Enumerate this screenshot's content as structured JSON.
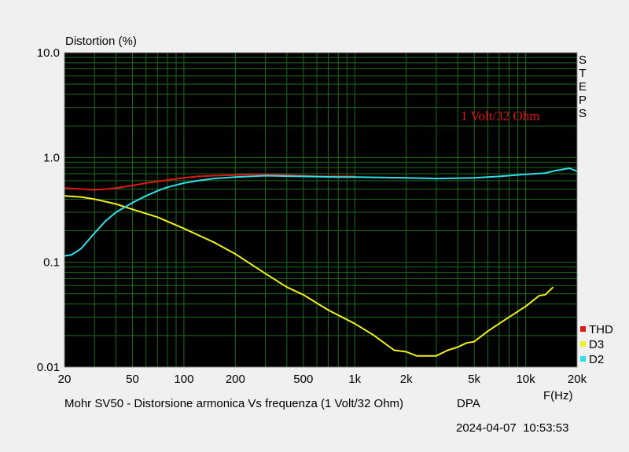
{
  "chart_data": {
    "type": "line",
    "title": "Distortion (%)",
    "xlabel": "F(Hz)",
    "x_scale": "log",
    "y_scale": "log",
    "xlim": [
      20,
      20000
    ],
    "ylim": [
      0.01,
      10
    ],
    "grid": true,
    "x_ticks": [
      {
        "v": 20,
        "label": "20"
      },
      {
        "v": 50,
        "label": "50"
      },
      {
        "v": 100,
        "label": "100"
      },
      {
        "v": 200,
        "label": "200"
      },
      {
        "v": 500,
        "label": "500"
      },
      {
        "v": 1000,
        "label": "1k"
      },
      {
        "v": 2000,
        "label": "2k"
      },
      {
        "v": 5000,
        "label": "5k"
      },
      {
        "v": 10000,
        "label": "10k"
      },
      {
        "v": 20000,
        "label": "20k"
      }
    ],
    "y_ticks": [
      {
        "v": 10,
        "label": "10.0"
      },
      {
        "v": 1,
        "label": "1.0"
      },
      {
        "v": 0.1,
        "label": "0.1"
      },
      {
        "v": 0.01,
        "label": "0.01"
      }
    ],
    "annotation": "1 Volt/32 Ohm",
    "side_label": [
      "S",
      "T",
      "E",
      "P",
      "S"
    ],
    "caption": "Mohr SV50 - Distorsione armonica Vs frequenza (1 Volt/32 Ohm)",
    "brand": "DPA",
    "timestamp": "2024-04-07  10:53:53",
    "legend_position": "bottom-right",
    "series": [
      {
        "name": "THD",
        "color": "#e01818",
        "points": [
          [
            20,
            0.51
          ],
          [
            25,
            0.5
          ],
          [
            30,
            0.49
          ],
          [
            35,
            0.5
          ],
          [
            40,
            0.51
          ],
          [
            50,
            0.54
          ],
          [
            60,
            0.57
          ],
          [
            70,
            0.59
          ],
          [
            80,
            0.61
          ],
          [
            100,
            0.64
          ],
          [
            120,
            0.66
          ],
          [
            150,
            0.67
          ],
          [
            200,
            0.68
          ],
          [
            250,
            0.69
          ],
          [
            300,
            0.69
          ],
          [
            400,
            0.68
          ],
          [
            500,
            0.67
          ],
          [
            600,
            0.66
          ],
          [
            800,
            0.66
          ],
          [
            1000,
            0.66
          ]
        ]
      },
      {
        "name": "D3",
        "color": "#f0f020",
        "points": [
          [
            20,
            0.43
          ],
          [
            25,
            0.42
          ],
          [
            30,
            0.4
          ],
          [
            40,
            0.36
          ],
          [
            50,
            0.32
          ],
          [
            70,
            0.27
          ],
          [
            100,
            0.21
          ],
          [
            150,
            0.155
          ],
          [
            200,
            0.12
          ],
          [
            300,
            0.078
          ],
          [
            400,
            0.058
          ],
          [
            500,
            0.049
          ],
          [
            700,
            0.035
          ],
          [
            1000,
            0.026
          ],
          [
            1300,
            0.02
          ],
          [
            1700,
            0.0145
          ],
          [
            2000,
            0.014
          ],
          [
            2300,
            0.0128
          ],
          [
            3000,
            0.0128
          ],
          [
            3500,
            0.0145
          ],
          [
            4000,
            0.0155
          ],
          [
            4500,
            0.017
          ],
          [
            5000,
            0.0175
          ],
          [
            6000,
            0.022
          ],
          [
            7000,
            0.026
          ],
          [
            8000,
            0.03
          ],
          [
            10000,
            0.038
          ],
          [
            12000,
            0.048
          ],
          [
            13000,
            0.049
          ],
          [
            14500,
            0.058
          ]
        ]
      },
      {
        "name": "D2",
        "color": "#30e0e8",
        "points": [
          [
            20,
            0.115
          ],
          [
            22,
            0.118
          ],
          [
            25,
            0.135
          ],
          [
            30,
            0.19
          ],
          [
            35,
            0.25
          ],
          [
            40,
            0.3
          ],
          [
            50,
            0.37
          ],
          [
            60,
            0.43
          ],
          [
            70,
            0.48
          ],
          [
            80,
            0.52
          ],
          [
            100,
            0.57
          ],
          [
            120,
            0.6
          ],
          [
            150,
            0.63
          ],
          [
            200,
            0.65
          ],
          [
            300,
            0.67
          ],
          [
            500,
            0.66
          ],
          [
            800,
            0.65
          ],
          [
            1000,
            0.65
          ],
          [
            2000,
            0.64
          ],
          [
            3000,
            0.63
          ],
          [
            5000,
            0.64
          ],
          [
            7000,
            0.66
          ],
          [
            10000,
            0.69
          ],
          [
            13000,
            0.71
          ],
          [
            15000,
            0.75
          ],
          [
            18000,
            0.79
          ],
          [
            20000,
            0.74
          ]
        ]
      }
    ]
  }
}
